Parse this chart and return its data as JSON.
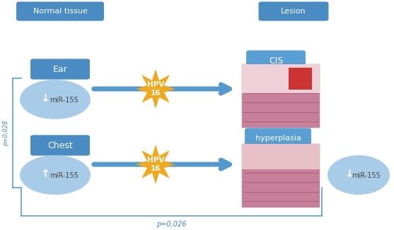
{
  "bg_color": "#ffffff",
  "box_color_dark": "#4a8bc4",
  "box_color_medium": "#5a9fd4",
  "circle_color": "#a8cce8",
  "star_color": "#f0a820",
  "arrow_color": "#5599cc",
  "text_white": "#ffffff",
  "text_dark": "#4a86c8",
  "title_left": "Normal tissue",
  "title_right": "Lesion",
  "label_ear": "Ear",
  "label_chest": "Chest",
  "label_cis": "CIS",
  "label_hyperplasia": "hyperplasia",
  "label_hpv": "HPV\n16",
  "label_mir155": "miR-155",
  "p_left": "p=0,028",
  "p_bottom": "p=0,026",
  "arrow_up": "↑",
  "arrow_down": "↓",
  "fig_w": 5.57,
  "fig_h": 3.26,
  "dpi": 100
}
